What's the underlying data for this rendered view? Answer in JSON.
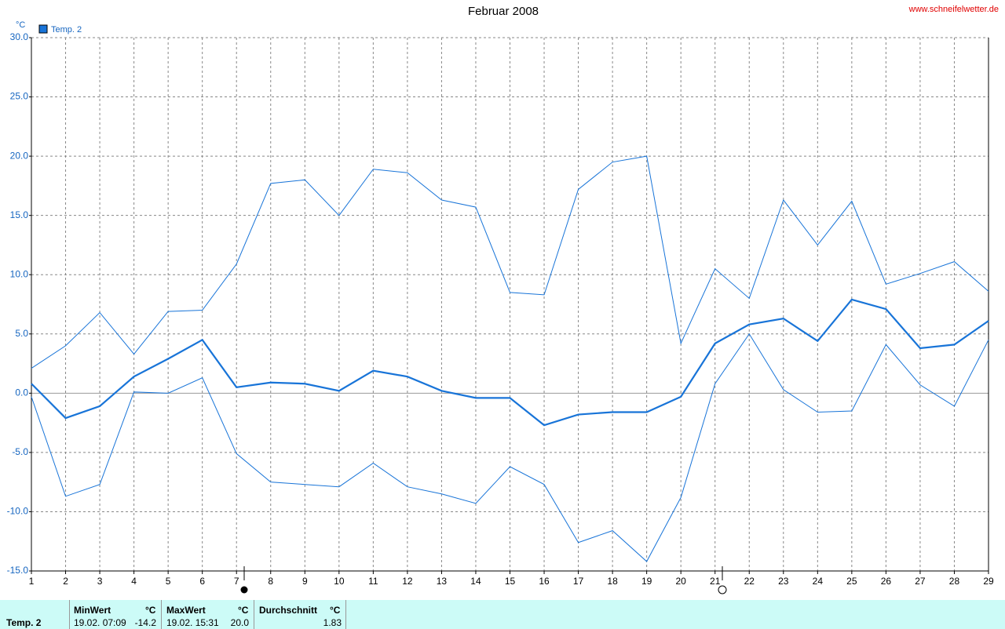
{
  "chart_data": {
    "type": "line",
    "title": "Februar 2008",
    "source": "www.schneifelwetter.de",
    "y_label": "°C",
    "x": [
      1,
      2,
      3,
      4,
      5,
      6,
      7,
      8,
      9,
      10,
      11,
      12,
      13,
      14,
      15,
      16,
      17,
      18,
      19,
      20,
      21,
      22,
      23,
      24,
      25,
      26,
      27,
      28,
      29
    ],
    "xlim": [
      1,
      29
    ],
    "xticks": [
      1,
      2,
      3,
      4,
      5,
      6,
      7,
      8,
      9,
      10,
      11,
      12,
      13,
      14,
      15,
      16,
      17,
      18,
      19,
      20,
      21,
      22,
      23,
      24,
      25,
      26,
      27,
      28,
      29
    ],
    "ylim": [
      -15,
      30
    ],
    "yticks": [
      {
        "value": -15,
        "label": "-15.0"
      },
      {
        "value": -10,
        "label": "-10.0"
      },
      {
        "value": -5,
        "label": "-5.0"
      },
      {
        "value": 0,
        "label": "0.0"
      },
      {
        "value": 5,
        "label": "5.0"
      },
      {
        "value": 10,
        "label": "10.0"
      },
      {
        "value": 15,
        "label": "15.0"
      },
      {
        "value": 20,
        "label": "20.0"
      },
      {
        "value": 25,
        "label": "25.0"
      },
      {
        "value": 30,
        "label": "30.0"
      }
    ],
    "grid": true,
    "series": [
      {
        "name": "Temp. 2",
        "color": "#1874d8",
        "line_width": 2.2,
        "values": [
          0.8,
          -2.1,
          -1.1,
          1.4,
          2.9,
          4.5,
          0.5,
          0.9,
          0.8,
          0.2,
          1.9,
          1.4,
          0.2,
          -0.4,
          -0.4,
          -2.7,
          -1.8,
          -1.6,
          -1.6,
          -0.3,
          4.2,
          5.8,
          6.3,
          4.4,
          7.9,
          7.1,
          3.8,
          4.1,
          6.1
        ]
      },
      {
        "color": "#1874d8",
        "line_width": 1,
        "values": [
          2.1,
          4.0,
          6.8,
          3.3,
          6.9,
          7.0,
          10.9,
          17.7,
          18.0,
          15.0,
          18.9,
          18.6,
          16.3,
          15.7,
          8.5,
          8.3,
          17.2,
          19.5,
          20.0,
          4.2,
          10.5,
          8.0,
          16.3,
          12.5,
          16.2,
          9.2,
          10.1,
          11.1,
          8.6
        ]
      },
      {
        "color": "#1874d8",
        "line_width": 1,
        "values": [
          -0.3,
          -8.7,
          -7.7,
          0.1,
          0.0,
          1.3,
          -5.1,
          -7.5,
          -7.7,
          -7.9,
          -5.9,
          -7.9,
          -8.5,
          -9.3,
          -6.2,
          -7.7,
          -12.6,
          -11.6,
          -14.2,
          -8.8,
          0.8,
          5.0,
          0.3,
          -1.6,
          -1.5,
          4.1,
          0.7,
          -1.1,
          4.5
        ]
      }
    ]
  },
  "footer": {
    "sensor": "Temp. 2",
    "min": {
      "label": "MinWert",
      "unit": "°C",
      "time": "19.02.  07:09",
      "value": "-14.2"
    },
    "max": {
      "label": "MaxWert",
      "unit": "°C",
      "time": "19.02.  15:31",
      "value": "20.0"
    },
    "avg": {
      "label": "Durchschnitt",
      "unit": "°C",
      "value": "1.83"
    }
  }
}
